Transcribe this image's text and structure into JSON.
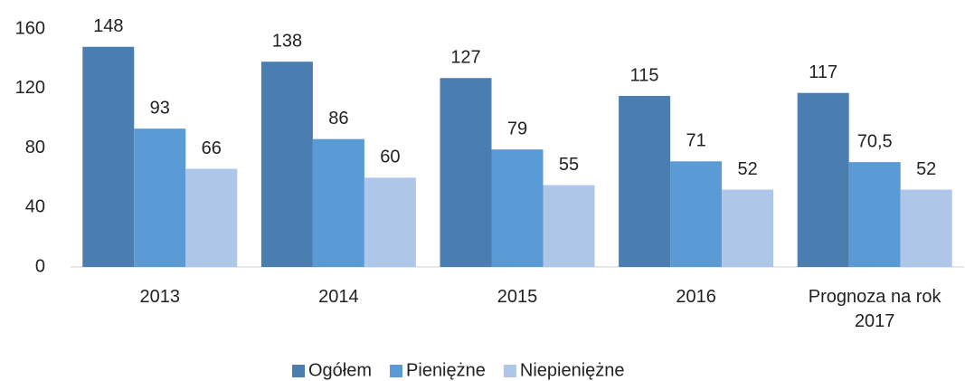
{
  "chart_data": {
    "type": "bar",
    "categories": [
      "2013",
      "2014",
      "2015",
      "2016",
      "Prognoza na rok 2017"
    ],
    "series": [
      {
        "name": "Ogółem",
        "color": "#4a7eb1",
        "values": [
          148,
          138,
          127,
          115,
          117
        ]
      },
      {
        "name": "Pieniężne",
        "color": "#5b9bd5",
        "values": [
          93,
          86,
          79,
          71,
          70.5
        ],
        "value_labels": [
          "93",
          "86",
          "79",
          "71",
          "70,5"
        ]
      },
      {
        "name": "Niepieniężne",
        "color": "#aec6e8",
        "values": [
          66,
          60,
          55,
          52,
          52
        ]
      }
    ],
    "ylim": [
      0,
      160
    ],
    "yticks": [
      0,
      40,
      80,
      120,
      160
    ],
    "grid": false,
    "legend": "bottom"
  }
}
